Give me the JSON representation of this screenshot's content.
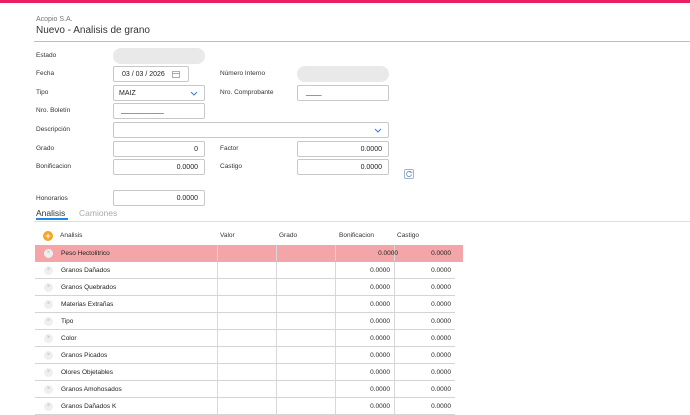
{
  "header": {
    "company": "Acopio S.A.",
    "title": "Nuevo - Analisis de grano"
  },
  "form": {
    "estado_label": "Estado",
    "fecha_label": "Fecha",
    "fecha_value": "03 / 03 / 2026",
    "numero_interno_label": "Número Interno",
    "tipo_label": "Tipo",
    "tipo_value": "MAIZ",
    "nro_comprobante_label": "Nro. Comprobante",
    "nro_comprobante_value": "____",
    "nro_boletin_label": "Nro. Boletín",
    "nro_boletin_value": "___________",
    "descripcion_label": "Descripción",
    "grado_label": "Grado",
    "grado_value": "0",
    "factor_label": "Factor",
    "factor_value": "0.0000",
    "bonificacion_label": "Bonificacion",
    "bonificacion_value": "0.0000",
    "castigo_label": "Castigo",
    "castigo_value": "0.0000",
    "honorarios_label": "Honorarios",
    "honorarios_value": "0.0000"
  },
  "tabs": [
    {
      "label": "Analisis"
    },
    {
      "label": "Camiones"
    }
  ],
  "table": {
    "add_icon": "plus-circle-icon",
    "columns": [
      "Analisis",
      "Valor",
      "Grado",
      "Bonificacion",
      "Castigo"
    ],
    "rows": [
      {
        "name": "Peso Hectolitrico",
        "bonificacion": "0.0000",
        "castigo": "0.0000"
      },
      {
        "name": "Granos Dañados",
        "bonificacion": "0.0000",
        "castigo": "0.0000"
      },
      {
        "name": "Granos Quebrados",
        "bonificacion": "0.0000",
        "castigo": "0.0000"
      },
      {
        "name": "Materias Extrañas",
        "bonificacion": "0.0000",
        "castigo": "0.0000"
      },
      {
        "name": "Tipo",
        "bonificacion": "0.0000",
        "castigo": "0.0000"
      },
      {
        "name": "Color",
        "bonificacion": "0.0000",
        "castigo": "0.0000"
      },
      {
        "name": "Granos Picados",
        "bonificacion": "0.0000",
        "castigo": "0.0000"
      },
      {
        "name": "Olores Objetables",
        "bonificacion": "0.0000",
        "castigo": "0.0000"
      },
      {
        "name": "Granos Amohosados",
        "bonificacion": "0.0000",
        "castigo": "0.0000"
      },
      {
        "name": "Granos Dañados K",
        "bonificacion": "0.0000",
        "castigo": "0.0000"
      }
    ]
  },
  "colors": {
    "accent_bar": "#e91e63",
    "highlight_row": "#f4a5a7",
    "tab_underline": "#1e88e5",
    "add_button": "#f5a623"
  }
}
